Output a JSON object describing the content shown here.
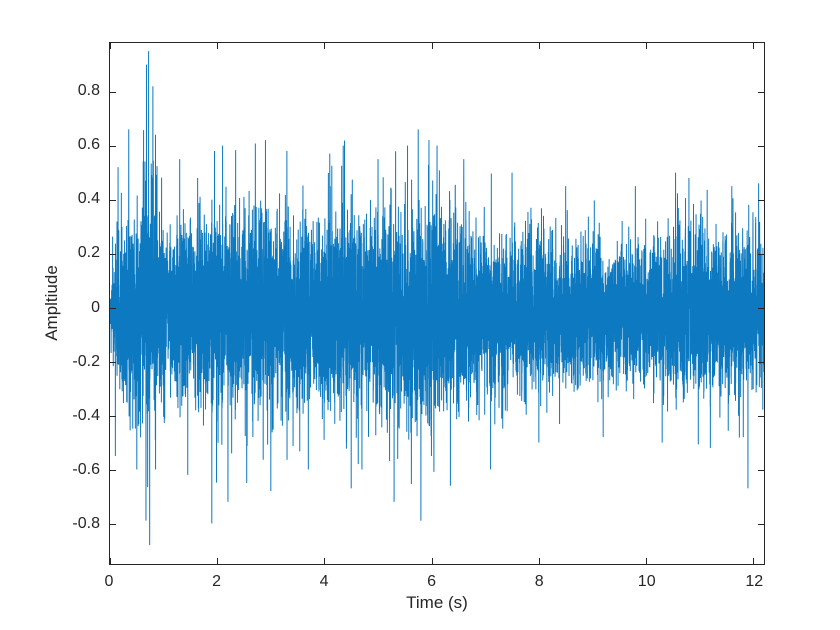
{
  "figure": {
    "background": "#ffffff"
  },
  "chart_data": {
    "type": "line",
    "title": "",
    "xlabel": "Time (s)",
    "ylabel": "Ampltiude",
    "xlim": [
      0,
      12.2
    ],
    "ylim": [
      -0.95,
      0.98
    ],
    "xticks": [
      0,
      2,
      4,
      6,
      8,
      10,
      12
    ],
    "yticks": [
      -0.8,
      -0.6,
      -0.4,
      -0.2,
      0,
      0.2,
      0.4,
      0.6,
      0.8
    ],
    "grid": false,
    "legend": null,
    "line_color": "#0072BD",
    "axes_color": "#262626",
    "signal": {
      "description": "dense noisy audio waveform, amplitude mostly within +/-0.4 with sparse spikes; largest spike ~0.95 near t=0.72 s and ~-0.88 near t=0.74 s; energy slowly decreases after t~6 s then rises slightly after t~10.5 s",
      "samples": 9000,
      "seed": 20,
      "mean_offset": -0.02,
      "noise_sigma_divisor": 3.2,
      "envelope": [
        [
          0,
          0.05
        ],
        [
          0.05,
          0.4
        ],
        [
          0.3,
          0.5
        ],
        [
          0.55,
          0.55
        ],
        [
          0.7,
          0.8
        ],
        [
          0.8,
          0.75
        ],
        [
          0.95,
          0.5
        ],
        [
          1.2,
          0.5
        ],
        [
          1.6,
          0.55
        ],
        [
          2.0,
          0.62
        ],
        [
          2.4,
          0.55
        ],
        [
          2.8,
          0.6
        ],
        [
          3.2,
          0.55
        ],
        [
          3.6,
          0.5
        ],
        [
          4.0,
          0.55
        ],
        [
          4.4,
          0.6
        ],
        [
          4.8,
          0.55
        ],
        [
          5.2,
          0.58
        ],
        [
          5.6,
          0.62
        ],
        [
          5.9,
          0.66
        ],
        [
          6.2,
          0.6
        ],
        [
          6.6,
          0.55
        ],
        [
          7.0,
          0.5
        ],
        [
          7.4,
          0.47
        ],
        [
          7.8,
          0.44
        ],
        [
          8.2,
          0.42
        ],
        [
          8.6,
          0.4
        ],
        [
          9.0,
          0.42
        ],
        [
          9.4,
          0.4
        ],
        [
          9.8,
          0.42
        ],
        [
          10.2,
          0.45
        ],
        [
          10.6,
          0.52
        ],
        [
          11.0,
          0.48
        ],
        [
          11.4,
          0.45
        ],
        [
          11.8,
          0.46
        ],
        [
          12.2,
          0.42
        ]
      ],
      "peaks": [
        [
          0.1,
          -0.55
        ],
        [
          0.15,
          0.52
        ],
        [
          0.35,
          0.66
        ],
        [
          0.5,
          -0.6
        ],
        [
          0.68,
          0.9
        ],
        [
          0.72,
          0.95
        ],
        [
          0.74,
          -0.88
        ],
        [
          0.8,
          0.82
        ],
        [
          0.85,
          -0.6
        ],
        [
          1.3,
          0.55
        ],
        [
          1.45,
          -0.62
        ],
        [
          1.9,
          -0.8
        ],
        [
          1.95,
          0.58
        ],
        [
          2.1,
          0.6
        ],
        [
          2.2,
          -0.72
        ],
        [
          2.55,
          -0.65
        ],
        [
          2.9,
          0.62
        ],
        [
          3.0,
          -0.68
        ],
        [
          3.3,
          0.58
        ],
        [
          3.7,
          -0.6
        ],
        [
          4.1,
          0.57
        ],
        [
          4.35,
          0.6
        ],
        [
          4.5,
          -0.67
        ],
        [
          4.7,
          -0.6
        ],
        [
          5.0,
          0.55
        ],
        [
          5.3,
          -0.72
        ],
        [
          5.55,
          0.6
        ],
        [
          5.75,
          0.66
        ],
        [
          5.8,
          -0.79
        ],
        [
          5.95,
          0.62
        ],
        [
          6.1,
          0.6
        ],
        [
          6.35,
          -0.66
        ],
        [
          6.6,
          0.55
        ],
        [
          7.1,
          -0.6
        ],
        [
          7.5,
          0.5
        ],
        [
          8.0,
          -0.5
        ],
        [
          8.5,
          0.45
        ],
        [
          9.2,
          -0.48
        ],
        [
          9.8,
          0.45
        ],
        [
          10.3,
          -0.5
        ],
        [
          10.55,
          0.5
        ],
        [
          10.8,
          0.48
        ],
        [
          11.2,
          -0.52
        ],
        [
          11.6,
          0.45
        ],
        [
          11.9,
          -0.67
        ],
        [
          12.1,
          0.46
        ]
      ]
    }
  }
}
